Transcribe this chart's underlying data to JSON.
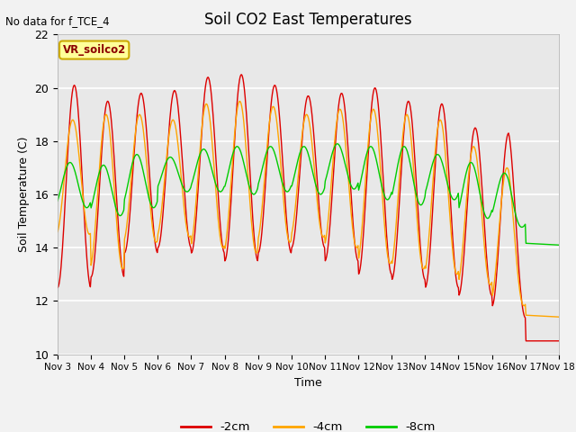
{
  "title": "Soil CO2 East Temperatures",
  "ylabel": "Soil Temperature (C)",
  "xlabel": "Time",
  "no_data_text": "No data for f_TCE_4",
  "annotation_text": "VR_soilco2",
  "ylim": [
    10,
    22
  ],
  "x_tick_labels": [
    "Nov 3",
    "Nov 4",
    "Nov 5",
    "Nov 6",
    "Nov 7",
    "Nov 8",
    "Nov 9",
    "Nov 10",
    "Nov 11",
    "Nov 12",
    "Nov 13",
    "Nov 14",
    "Nov 15",
    "Nov 16",
    "Nov 17",
    "Nov 18"
  ],
  "legend_labels": [
    "-2cm",
    "-4cm",
    "-8cm"
  ],
  "line_colors": [
    "#dd0000",
    "#ffa500",
    "#00cc00"
  ],
  "background_color": "#e8e8e8",
  "fig_color": "#f2f2f2"
}
